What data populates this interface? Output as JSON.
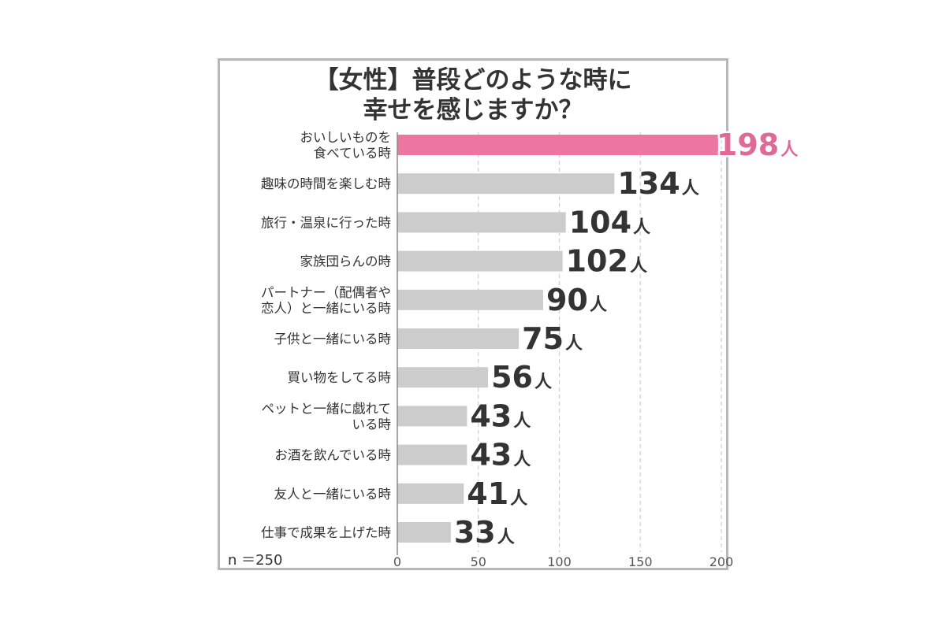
{
  "chart_data": {
    "type": "bar",
    "orientation": "horizontal",
    "title_lines": [
      "【女性】普段どのような時に",
      "幸せを感じますか？"
    ],
    "categories": [
      [
        "おいしいものを",
        "食べている時"
      ],
      [
        "趣味の時間を楽しむ時"
      ],
      [
        "旅行・温泉に行った時"
      ],
      [
        "家族団らんの時"
      ],
      [
        "パートナー（配偶者や",
        "恋人）と一緒にいる時"
      ],
      [
        "子供と一緒にいる時"
      ],
      [
        "買い物をしてる時"
      ],
      [
        "ペットと一緒に戯れて",
        "いる時"
      ],
      [
        "お酒を飲んでいる時"
      ],
      [
        "友人と一緒にいる時"
      ],
      [
        "仕事で成果を上げた時"
      ]
    ],
    "values": [
      198,
      134,
      104,
      102,
      90,
      75,
      56,
      43,
      43,
      41,
      33
    ],
    "value_unit": "人",
    "xlim": [
      0,
      200
    ],
    "xticks": [
      0,
      50,
      100,
      150,
      200
    ],
    "grid": true,
    "sample_size_label": "n ＝250",
    "colors": {
      "highlight": "#ec76a0",
      "highlight_text": "#e06a96",
      "bar": "#cccccc",
      "text": "#333333",
      "grid": "#cfcfcf",
      "frame": "#b7b7b7"
    }
  }
}
